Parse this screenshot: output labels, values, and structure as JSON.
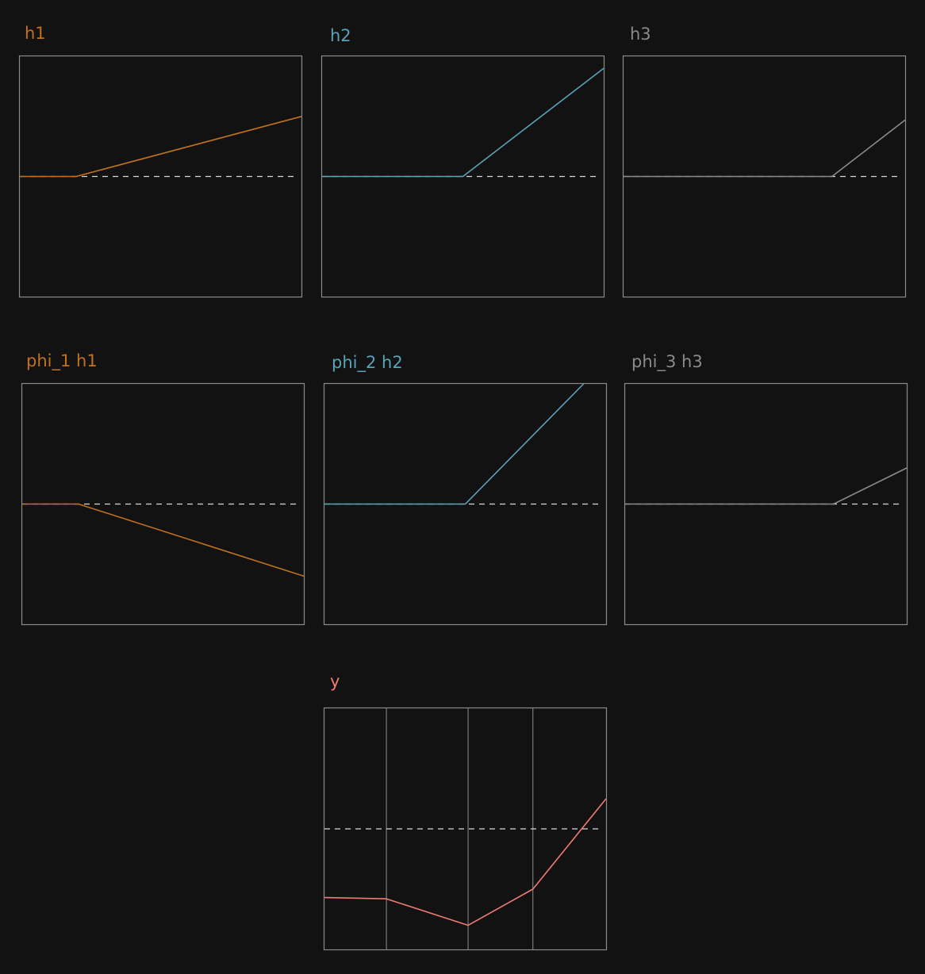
{
  "colors": {
    "background": "#121212",
    "frame": "#8a8a8a",
    "zero_line": "#d8d8d8",
    "grid": "#7a7a7a",
    "h1": "#c0711d",
    "h2": "#5aa2b8",
    "h3": "#8a8a8a",
    "y": "#f07b74"
  },
  "chart_data": [
    {
      "id": "h1",
      "type": "line",
      "title": "h1",
      "color_key": "h1",
      "x": [
        0,
        0.2,
        1
      ],
      "y": [
        0,
        0,
        0.5
      ],
      "xlim": [
        0,
        1
      ],
      "ylim": [
        -1,
        1
      ],
      "zero_line": true,
      "grid": false
    },
    {
      "id": "h2",
      "type": "line",
      "title": "h2",
      "color_key": "h2",
      "x": [
        0,
        0.5,
        1
      ],
      "y": [
        0,
        0,
        0.9
      ],
      "xlim": [
        0,
        1
      ],
      "ylim": [
        -1,
        1
      ],
      "zero_line": true,
      "grid": false
    },
    {
      "id": "h3",
      "type": "line",
      "title": "h3",
      "color_key": "h3",
      "x": [
        0,
        0.74,
        1
      ],
      "y": [
        0,
        0,
        0.47
      ],
      "xlim": [
        0,
        1
      ],
      "ylim": [
        -1,
        1
      ],
      "zero_line": true,
      "grid": false
    },
    {
      "id": "phi1h1",
      "type": "line",
      "title": "phi_1 h1",
      "color_key": "h1",
      "x": [
        0,
        0.2,
        1
      ],
      "y": [
        0,
        0,
        -0.6
      ],
      "xlim": [
        0,
        1
      ],
      "ylim": [
        -1,
        1
      ],
      "zero_line": true,
      "grid": false
    },
    {
      "id": "phi2h2",
      "type": "line",
      "title": "phi_2 h2",
      "color_key": "h2",
      "x": [
        0,
        0.5,
        0.92
      ],
      "y": [
        0,
        0,
        1.0
      ],
      "xlim": [
        0,
        1
      ],
      "ylim": [
        -1,
        1
      ],
      "zero_line": true,
      "grid": false
    },
    {
      "id": "phi3h3",
      "type": "line",
      "title": "phi_3 h3",
      "color_key": "h3",
      "x": [
        0,
        0.74,
        1
      ],
      "y": [
        0,
        0,
        0.3
      ],
      "xlim": [
        0,
        1
      ],
      "ylim": [
        -1,
        1
      ],
      "zero_line": true,
      "grid": false
    },
    {
      "id": "y",
      "type": "line",
      "title": "y",
      "color_key": "y",
      "x": [
        0,
        0.22,
        0.51,
        0.74,
        1
      ],
      "y": [
        -0.57,
        -0.58,
        -0.8,
        -0.5,
        0.25
      ],
      "xlim": [
        0,
        1
      ],
      "ylim": [
        -1,
        1
      ],
      "zero_line": true,
      "grid": true,
      "vlines": [
        0.22,
        0.51,
        0.74
      ]
    }
  ]
}
